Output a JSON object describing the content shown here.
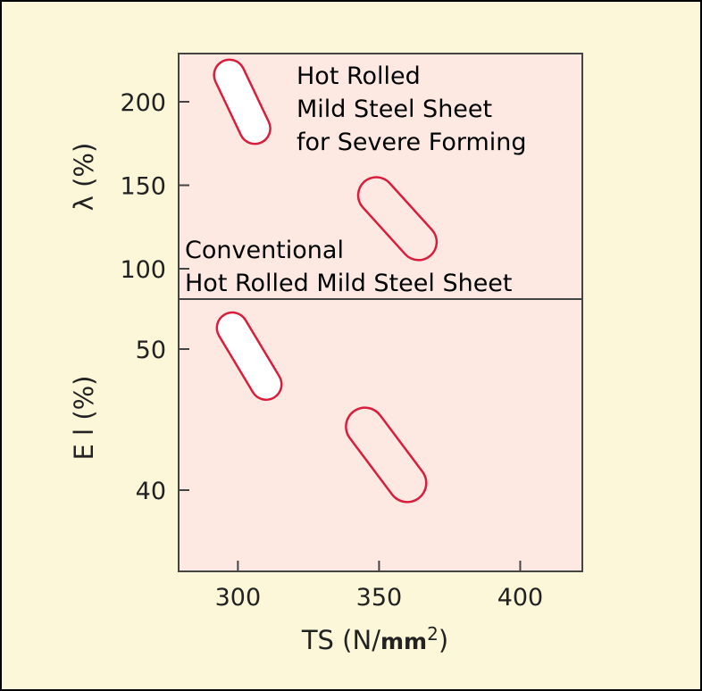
{
  "chart_data": {
    "type": "scatter",
    "xlabel": "TS (N/mm2)",
    "xlabel_main": "TS (N/",
    "xlabel_unit": "mm",
    "xlabel_sup": "2",
    "xlabel_close": ")",
    "xticks": [
      "300",
      "350",
      "400"
    ],
    "xlim": [
      279,
      422
    ],
    "colors": {
      "outline": "#d81e3c",
      "plot_bg": "#fde9e1",
      "page_bg": "#fbf7d8",
      "region_fill": "#ffffff"
    },
    "panels": [
      {
        "name": "lambda",
        "ylabel": "λ (%)",
        "yticks": [
          "200",
          "150",
          "100"
        ],
        "ylim": [
          95,
          225
        ],
        "regions": [
          {
            "label": "Hot Rolled Mild Steel Sheet for Severe Forming",
            "filled": true,
            "x": [
              297,
              306
            ],
            "y": [
              184,
              216
            ],
            "thickness": 17
          },
          {
            "label": "Conventional Hot Rolled Mild Steel Sheet",
            "filled": false,
            "x": [
              349,
              364
            ],
            "y": [
              116,
              144
            ],
            "thickness": 20
          }
        ],
        "annotations": [
          {
            "lines": [
              "Hot Rolled",
              "Mild Steel Sheet",
              "for Severe Forming"
            ]
          },
          {
            "lines": [
              "Conventional",
              "Hot Rolled Mild Steel Sheet"
            ]
          }
        ]
      },
      {
        "name": "elongation",
        "ylabel": "E l (%)",
        "yticks": [
          "50",
          "40"
        ],
        "ylim": [
          34,
          57
        ],
        "regions": [
          {
            "filled": true,
            "x": [
              298,
              310
            ],
            "y": [
              47.5,
              51.5
            ],
            "thickness": 17
          },
          {
            "filled": false,
            "x": [
              345,
              360
            ],
            "y": [
              40.5,
              44.5
            ],
            "thickness": 21
          }
        ]
      }
    ]
  }
}
